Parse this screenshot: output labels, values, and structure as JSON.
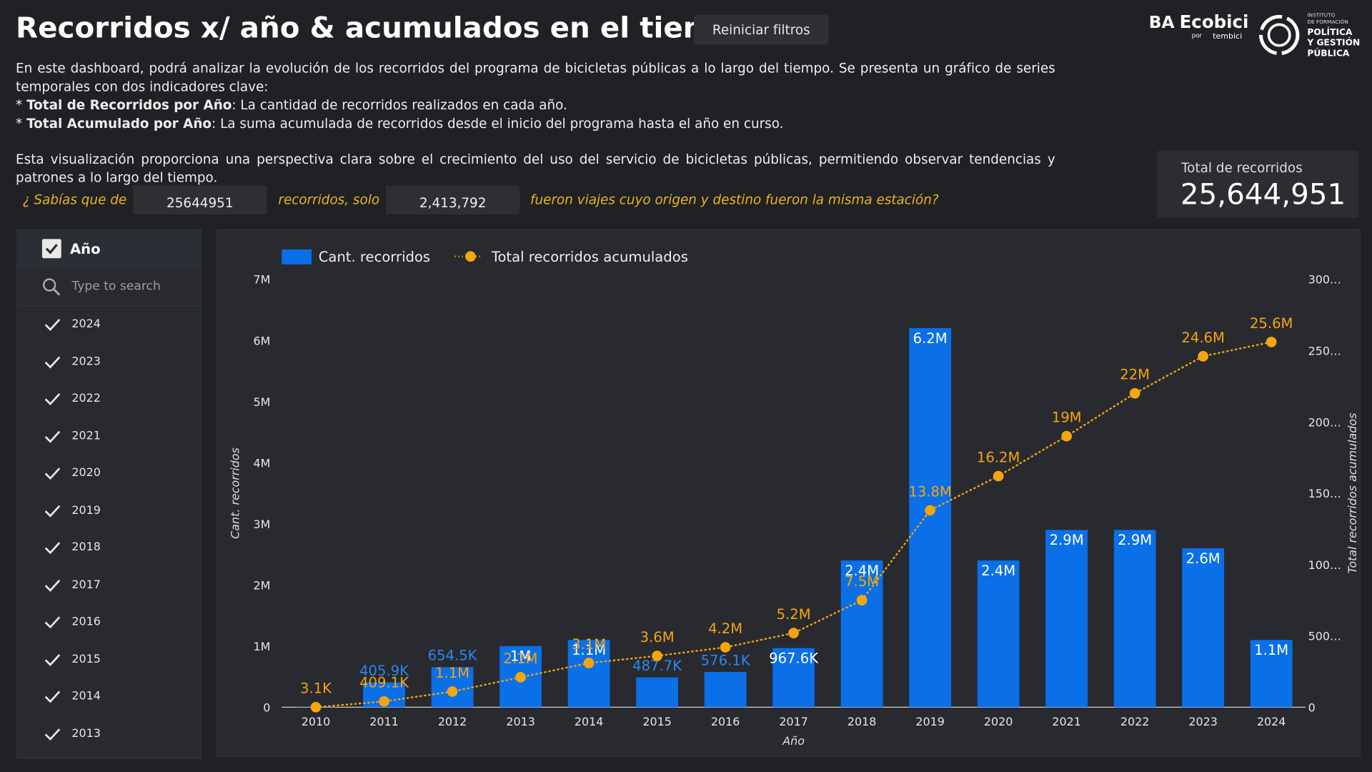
{
  "header": {
    "title": "Recorridos x/ año & acumulados en el tiempo",
    "button": "Reiniciar filtros"
  },
  "logos": {
    "ba": "BA",
    "ecobici": "Ecobici",
    "por": "por",
    "tembici": "tembici",
    "institute": [
      "INSTITUTO",
      "DE FORMACIÓN",
      "POLÍTICA",
      "Y GESTIÓN",
      "PÚBLICA"
    ]
  },
  "description": {
    "intro": "En este dashboard, podrá analizar la evolución de los recorridos del programa de bicicletas públicas a lo largo del tiempo. Se presenta un gráfico de series temporales con dos indicadores clave:",
    "bullets": [
      {
        "marker": "*",
        "bold": "Total de Recorridos por Año",
        "text": ": La cantidad de recorridos realizados en cada año."
      },
      {
        "marker": "*",
        "bold": "Total Acumulado por Año",
        "text": ": La suma acumulada de recorridos desde el inicio del programa hasta el año en curso."
      }
    ],
    "closing": "Esta visualización proporciona una perspectiva clara sobre el crecimiento del uso del servicio de bicicletas públicas, permitiendo observar tendencias y patrones a lo largo del tiempo."
  },
  "trivia": {
    "prefix": "¿ Sabías que de",
    "total": "25644951",
    "middle": "recorridos, solo",
    "same_station": "2,413,792",
    "suffix": "fueron viajes cuyo origen y destino fueron la misma estación?"
  },
  "kpi": {
    "label": "Total de recorridos",
    "value": "25,644,951"
  },
  "filter": {
    "title": "Año",
    "search_placeholder": "Type to search",
    "items": [
      "2024",
      "2023",
      "2022",
      "2021",
      "2020",
      "2019",
      "2018",
      "2017",
      "2016",
      "2015",
      "2014",
      "2013"
    ]
  },
  "chart_data": {
    "type": "bar",
    "x_label": "Año",
    "y_label": "Cant. recorridos",
    "y2_label": "Total recorridos acumulados",
    "categories": [
      "2010",
      "2011",
      "2012",
      "2013",
      "2014",
      "2015",
      "2016",
      "2017",
      "2018",
      "2019",
      "2020",
      "2021",
      "2022",
      "2023",
      "2024"
    ],
    "series": [
      {
        "name": "Cant. recorridos",
        "color": "#0b6fe8",
        "values": [
          3100,
          405900,
          654500,
          1000000,
          1100000,
          487700,
          576100,
          967600,
          2400000,
          6200000,
          2400000,
          2900000,
          2900000,
          2600000,
          1100000
        ],
        "value_labels": [
          null,
          "405.9K",
          "654.5K",
          "1M",
          "1.1M",
          "487.7K",
          "576.1K",
          "967.6K",
          "2.4M",
          "6.2M",
          "2.4M",
          "2.9M",
          "2.9M",
          "2.6M",
          "1.1M"
        ]
      },
      {
        "name": "Total recorridos acumulados",
        "color": "#f5a60b",
        "type": "line",
        "axis": "y2",
        "values": [
          3100,
          409100,
          1100000,
          2100000,
          3100000,
          3600000,
          4200000,
          5200000,
          7500000,
          13800000,
          16200000,
          19000000,
          22000000,
          24600000,
          25600000
        ],
        "value_labels": [
          "3.1K",
          "409.1K",
          "1.1M",
          "2.1M",
          "3.1M",
          "3.6M",
          "4.2M",
          "5.2M",
          "7.5M",
          "13.8M",
          "16.2M",
          "19M",
          "22M",
          "24.6M",
          "25.6M"
        ]
      }
    ],
    "ylim": [
      0,
      7000000
    ],
    "yticks": [
      0,
      {
        "value": 1000000,
        "label": "1M"
      },
      {
        "value": 2000000,
        "label": "2M"
      },
      {
        "value": 3000000,
        "label": "3M"
      },
      {
        "value": 4000000,
        "label": "4M"
      },
      {
        "value": 5000000,
        "label": "5M"
      },
      {
        "value": 6000000,
        "label": "6M"
      },
      {
        "value": 7000000,
        "label": "7M"
      }
    ],
    "y2lim": [
      0,
      30000000
    ],
    "y2ticks": [
      0,
      {
        "value": 5000000,
        "label": "500…"
      },
      {
        "value": 10000000,
        "label": "100…"
      },
      {
        "value": 15000000,
        "label": "150…"
      },
      {
        "value": 20000000,
        "label": "200…"
      },
      {
        "value": 25000000,
        "label": "250…"
      },
      {
        "value": 30000000,
        "label": "300…"
      }
    ],
    "grid": false
  }
}
